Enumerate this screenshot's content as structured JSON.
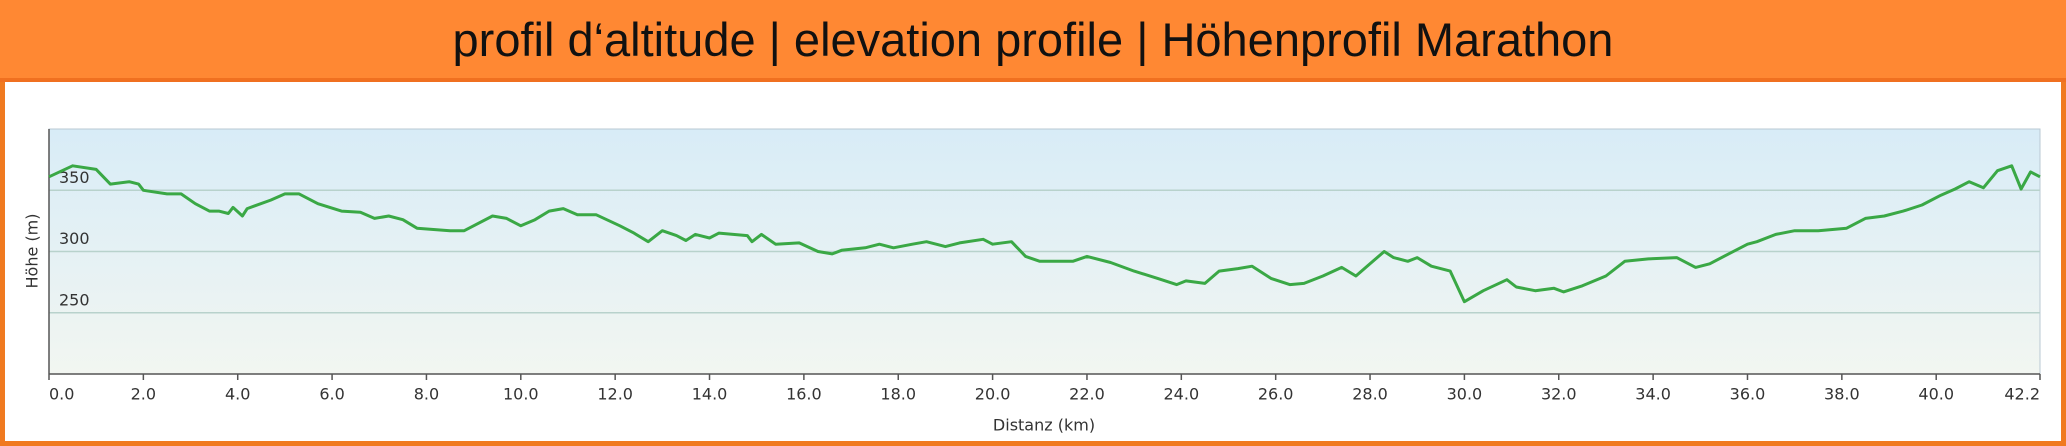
{
  "title": "profil d‘altitude | elevation profile | Höhenprofil Marathon",
  "chart_data": {
    "type": "line",
    "ylabel": "Höhe (m)",
    "xlabel": "Distanz  (km)",
    "xlim": [
      0,
      42.2
    ],
    "ylim": [
      200,
      400
    ],
    "xticks": [
      {
        "value": 0,
        "label": "0.0"
      },
      {
        "value": 2,
        "label": "2.0"
      },
      {
        "value": 4,
        "label": "4.0"
      },
      {
        "value": 6,
        "label": "6.0"
      },
      {
        "value": 8,
        "label": "8.0"
      },
      {
        "value": 10,
        "label": "10.0"
      },
      {
        "value": 12,
        "label": "12.0"
      },
      {
        "value": 14,
        "label": "14.0"
      },
      {
        "value": 16,
        "label": "16.0"
      },
      {
        "value": 18,
        "label": "18.0"
      },
      {
        "value": 20,
        "label": "20.0"
      },
      {
        "value": 22,
        "label": "22.0"
      },
      {
        "value": 24,
        "label": "24.0"
      },
      {
        "value": 26,
        "label": "26.0"
      },
      {
        "value": 28,
        "label": "28.0"
      },
      {
        "value": 30,
        "label": "30.0"
      },
      {
        "value": 32,
        "label": "32.0"
      },
      {
        "value": 34,
        "label": "34.0"
      },
      {
        "value": 36,
        "label": "36.0"
      },
      {
        "value": 38,
        "label": "38.0"
      },
      {
        "value": 40,
        "label": "40.0"
      },
      42.2
    ],
    "yticks": [
      250,
      300,
      350
    ],
    "grid": true,
    "color": "#3aa845",
    "x": [
      0,
      0.5,
      1.0,
      1.3,
      1.7,
      1.9,
      2.0,
      2.5,
      2.8,
      3.1,
      3.4,
      3.6,
      3.8,
      3.9,
      4.1,
      4.2,
      4.7,
      5.0,
      5.3,
      5.7,
      6.2,
      6.6,
      6.9,
      7.2,
      7.5,
      7.8,
      8.5,
      8.8,
      9.0,
      9.4,
      9.7,
      10.0,
      10.3,
      10.6,
      10.9,
      11.2,
      11.6,
      12.1,
      12.4,
      12.7,
      13.0,
      13.3,
      13.5,
      13.7,
      14.0,
      14.2,
      14.8,
      14.9,
      15.1,
      15.4,
      15.9,
      16.3,
      16.6,
      16.8,
      17.3,
      17.6,
      17.9,
      18.3,
      18.6,
      19.0,
      19.3,
      19.8,
      20.0,
      20.4,
      20.7,
      21.0,
      21.7,
      22.0,
      22.5,
      23.0,
      23.5,
      23.9,
      24.1,
      24.5,
      24.8,
      25.2,
      25.5,
      25.9,
      26.3,
      26.6,
      27.0,
      27.4,
      27.7,
      28.0,
      28.3,
      28.5,
      28.8,
      29.0,
      29.3,
      29.7,
      30.0,
      30.4,
      30.9,
      31.1,
      31.5,
      31.9,
      32.1,
      32.5,
      33.0,
      33.4,
      33.9,
      34.5,
      34.9,
      35.2,
      35.6,
      36.0,
      36.2,
      36.6,
      37.0,
      37.5,
      38.1,
      38.5,
      38.9,
      39.3,
      39.7,
      40.1,
      40.4,
      40.7,
      41.0,
      41.3,
      41.6,
      41.8,
      42.0,
      42.2
    ],
    "values": [
      361,
      370,
      367,
      355,
      357,
      355,
      350,
      347,
      347,
      339,
      333,
      333,
      331,
      336,
      329,
      335,
      342,
      347,
      347,
      339,
      333,
      332,
      327,
      329,
      326,
      319,
      317,
      317,
      321,
      329,
      327,
      321,
      326,
      333,
      335,
      330,
      330,
      321,
      315,
      308,
      317,
      313,
      309,
      314,
      311,
      315,
      313,
      308,
      314,
      306,
      307,
      300,
      298,
      301,
      303,
      306,
      303,
      306,
      308,
      304,
      307,
      310,
      306,
      308,
      296,
      292,
      292,
      296,
      291,
      284,
      278,
      273,
      276,
      274,
      284,
      286,
      288,
      278,
      273,
      274,
      280,
      287,
      280,
      290,
      300,
      295,
      292,
      295,
      288,
      284,
      259,
      268,
      277,
      271,
      268,
      270,
      267,
      272,
      280,
      292,
      294,
      295,
      287,
      290,
      298,
      306,
      308,
      314,
      317,
      317,
      319,
      327,
      329,
      333,
      338,
      346,
      351,
      357,
      352,
      366,
      370,
      351,
      365,
      361
    ]
  }
}
